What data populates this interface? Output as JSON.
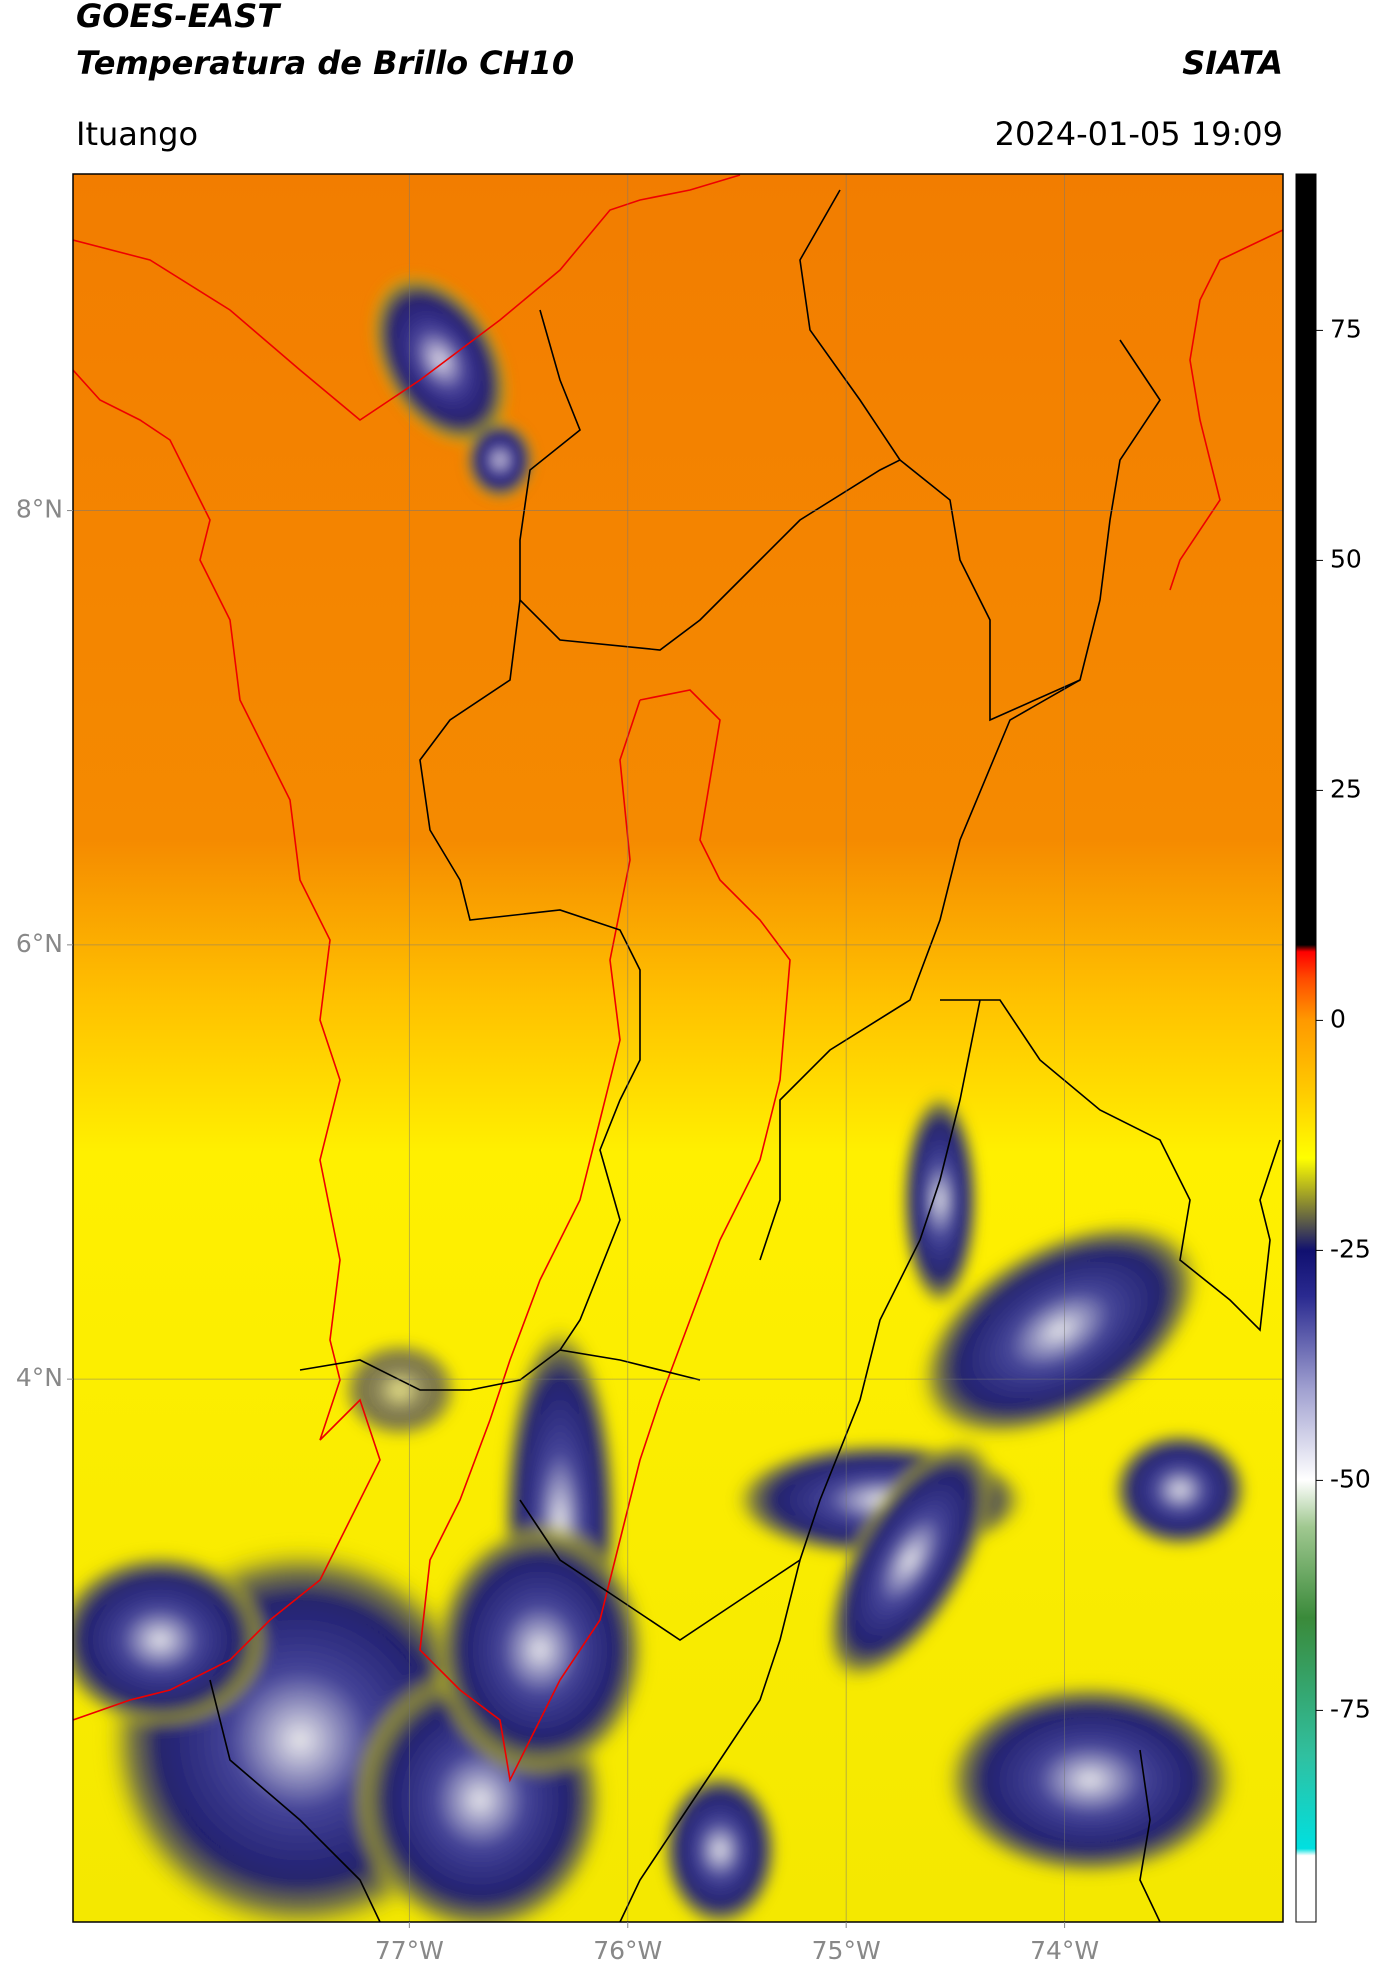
{
  "header": {
    "title": "GOES-EAST",
    "subtitle": "Temperatura de Brillo CH10",
    "organization": "SIATA",
    "location": "Ituango",
    "datetime": "2024-01-05 19:09"
  },
  "map": {
    "xlim": [
      -78.54,
      -73.0
    ],
    "ylim": [
      1.5,
      9.55
    ],
    "xticks": [
      {
        "value": -77,
        "label": "77°W"
      },
      {
        "value": -76,
        "label": "76°W"
      },
      {
        "value": -75,
        "label": "75°W"
      },
      {
        "value": -74,
        "label": "74°W"
      }
    ],
    "yticks": [
      {
        "value": 8,
        "label": "8°N"
      },
      {
        "value": 6,
        "label": "6°N"
      },
      {
        "value": 4,
        "label": "4°N"
      }
    ],
    "grid": true
  },
  "colorbar": {
    "lim": [
      -98,
      92
    ],
    "ticks": [
      75,
      50,
      25,
      0,
      -25,
      -50,
      -75
    ]
  }
}
